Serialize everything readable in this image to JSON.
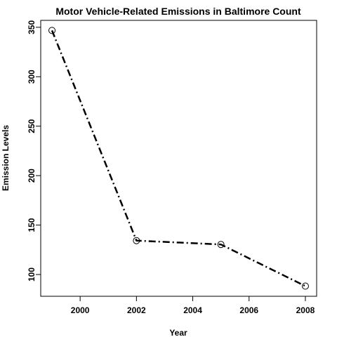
{
  "chart_data": {
    "type": "line",
    "title": "Motor Vehicle-Related Emissions in Baltimore Count",
    "xlabel": "Year",
    "ylabel": "Emission Levels",
    "x": [
      1999,
      2002,
      2005,
      2008
    ],
    "series": [
      {
        "values": [
          346.8,
          134.3,
          130.4,
          88.3
        ]
      }
    ],
    "xlim": [
      1998.6,
      2008.4
    ],
    "ylim": [
      78,
      357
    ],
    "xticks": [
      2000,
      2002,
      2004,
      2006,
      2008
    ],
    "yticks": [
      100,
      150,
      200,
      250,
      300,
      350
    ],
    "line_style": "dash-dot",
    "marker": "open-circle",
    "grid": false,
    "colors": {
      "line": "#000000",
      "background": "#ffffff"
    }
  }
}
